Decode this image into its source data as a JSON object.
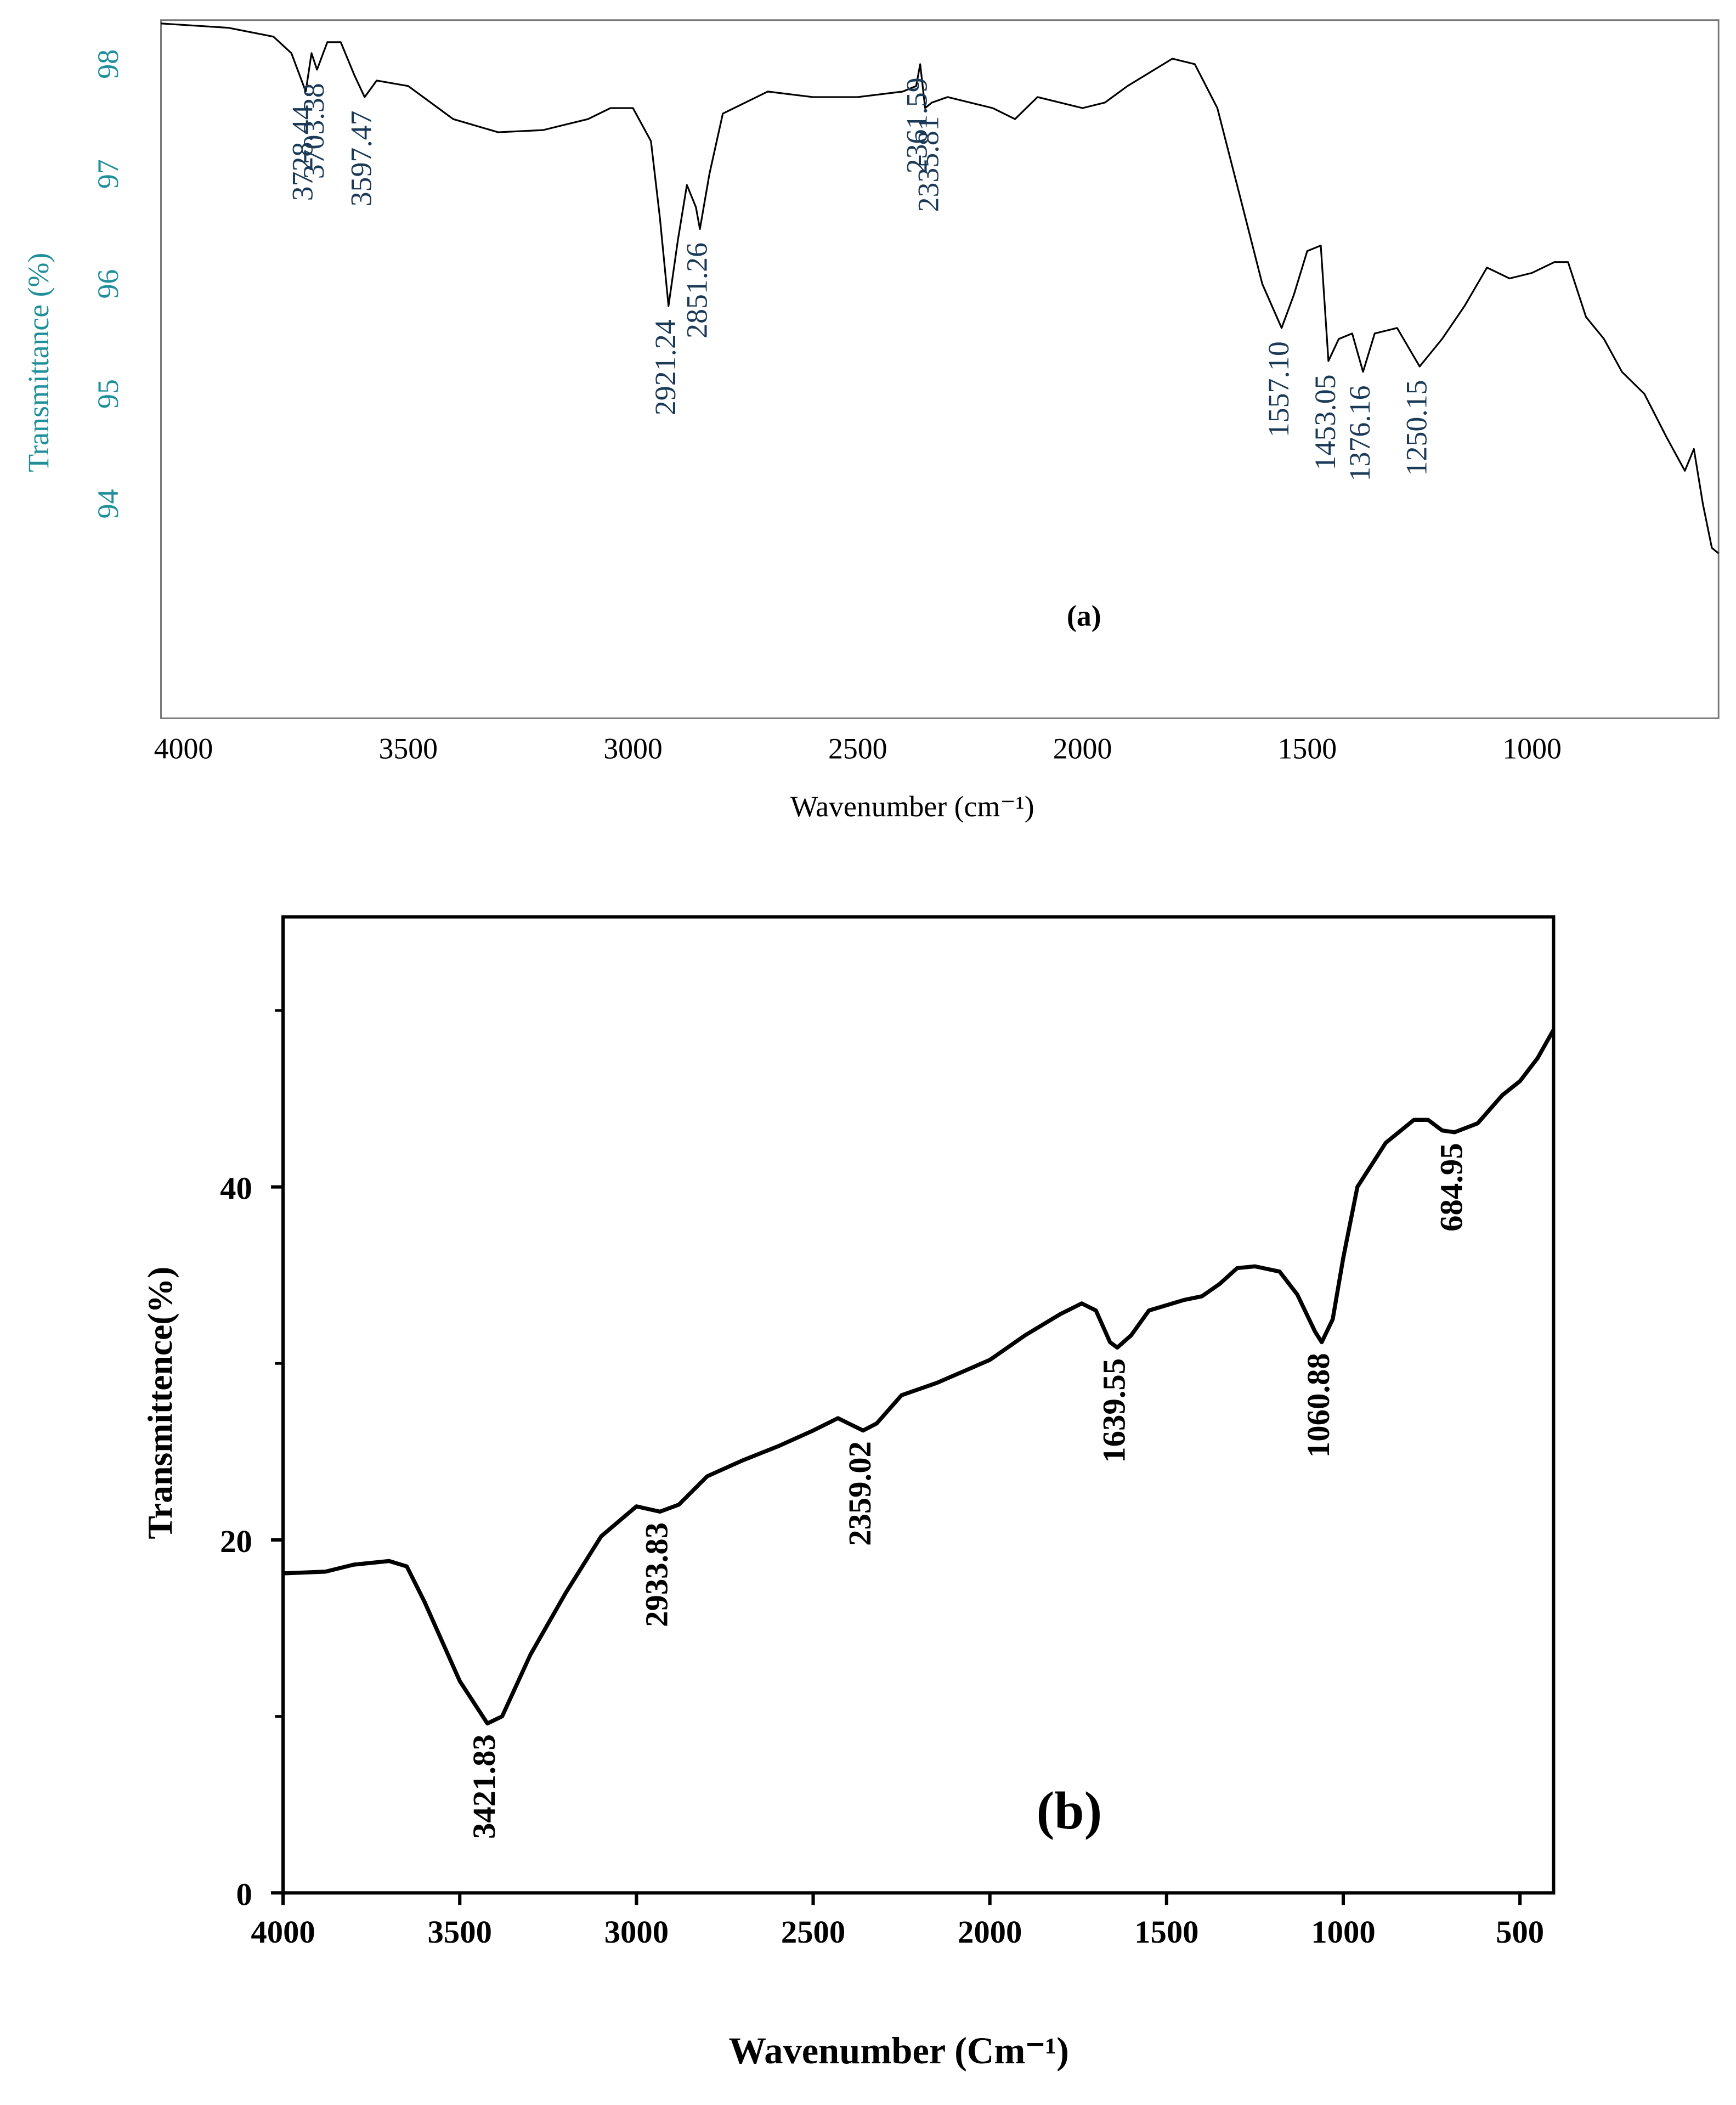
{
  "chart_data": [
    {
      "type": "line",
      "panel_label": "(a)",
      "xlabel": "Wavenumber (cm⁻¹)",
      "ylabel": "Transmittance (%)",
      "color": "#000000",
      "tick_color": "#1f8f9a",
      "annotation_color": "#1b3a57",
      "xlim": [
        4050,
        585
      ],
      "ylim": [
        92.05,
        98.4
      ],
      "xticks": [
        4000,
        3500,
        3000,
        2500,
        2000,
        1500,
        1000
      ],
      "yticks": [
        94,
        95,
        96,
        97,
        98
      ],
      "x": [
        4050,
        3900,
        3800,
        3760,
        3728,
        3715,
        3703,
        3680,
        3650,
        3620,
        3597,
        3570,
        3500,
        3400,
        3300,
        3200,
        3100,
        3050,
        3000,
        2960,
        2940,
        2921,
        2900,
        2880,
        2860,
        2851,
        2830,
        2800,
        2700,
        2600,
        2500,
        2400,
        2370,
        2361,
        2350,
        2335,
        2300,
        2200,
        2150,
        2100,
        2000,
        1950,
        1900,
        1800,
        1750,
        1700,
        1650,
        1600,
        1557,
        1530,
        1500,
        1470,
        1453,
        1430,
        1400,
        1376,
        1350,
        1300,
        1250,
        1200,
        1150,
        1100,
        1050,
        1000,
        950,
        920,
        880,
        840,
        800,
        750,
        700,
        660,
        640,
        620,
        600,
        585
      ],
      "values": [
        98.37,
        98.33,
        98.25,
        98.1,
        97.75,
        98.1,
        97.95,
        98.2,
        98.2,
        97.9,
        97.7,
        97.85,
        97.8,
        97.5,
        97.38,
        97.4,
        97.5,
        97.6,
        97.6,
        97.3,
        96.6,
        95.8,
        96.4,
        96.9,
        96.7,
        96.5,
        97.0,
        97.55,
        97.75,
        97.7,
        97.7,
        97.75,
        97.8,
        98.0,
        97.6,
        97.65,
        97.7,
        97.6,
        97.5,
        97.7,
        97.6,
        97.65,
        97.8,
        98.05,
        98.0,
        97.6,
        96.8,
        96.0,
        95.6,
        95.9,
        96.3,
        96.35,
        95.3,
        95.5,
        95.55,
        95.2,
        95.55,
        95.6,
        95.25,
        95.5,
        95.8,
        96.15,
        96.05,
        96.1,
        96.2,
        96.2,
        95.7,
        95.5,
        95.2,
        95.0,
        94.6,
        94.3,
        94.5,
        94.0,
        93.6,
        93.55
      ],
      "annotations": [
        {
          "label": "3728.44",
          "x": 3728.44,
          "y": 97.75
        },
        {
          "label": "3703.38",
          "x": 3703.38,
          "y": 97.95
        },
        {
          "label": "3597.47",
          "x": 3597.47,
          "y": 97.7
        },
        {
          "label": "2921.24",
          "x": 2921.24,
          "y": 95.8
        },
        {
          "label": "2851.26",
          "x": 2851.26,
          "y": 96.5
        },
        {
          "label": "2361.59",
          "x": 2361.59,
          "y": 98.0
        },
        {
          "label": "2335.81",
          "x": 2335.81,
          "y": 97.65
        },
        {
          "label": "1557.10",
          "x": 1557.1,
          "y": 95.6
        },
        {
          "label": "1453.05",
          "x": 1453.05,
          "y": 95.3
        },
        {
          "label": "1376.16",
          "x": 1376.16,
          "y": 95.2
        },
        {
          "label": "1250.15",
          "x": 1250.15,
          "y": 95.25
        }
      ]
    },
    {
      "type": "line",
      "panel_label": "(b)",
      "xlabel": "Wavenumber (Cm⁻¹)",
      "ylabel": "Transmittence(%)",
      "color": "#000000",
      "tick_color": "#000000",
      "annotation_color": "#000000",
      "xlim": [
        4000,
        405
      ],
      "ylim": [
        0,
        55.3
      ],
      "xticks": [
        4000,
        3500,
        3000,
        2500,
        2000,
        1500,
        1000,
        500
      ],
      "yticks": [
        0,
        20,
        40
      ],
      "yminor": [
        10,
        30,
        50
      ],
      "x": [
        4000,
        3880,
        3800,
        3700,
        3650,
        3600,
        3500,
        3421.83,
        3380,
        3300,
        3200,
        3100,
        3000,
        2933.83,
        2880,
        2800,
        2700,
        2600,
        2500,
        2430,
        2400,
        2359.02,
        2320,
        2250,
        2150,
        2000,
        1900,
        1800,
        1740,
        1700,
        1660,
        1639.55,
        1600,
        1550,
        1450,
        1400,
        1350,
        1300,
        1250,
        1180,
        1130,
        1080,
        1060.88,
        1030,
        1000,
        960,
        880,
        800,
        760,
        720,
        684.95,
        620,
        550,
        500,
        450,
        405
      ],
      "values": [
        18.1,
        18.2,
        18.6,
        18.8,
        18.5,
        16.5,
        12,
        9.6,
        10,
        13.5,
        17,
        20.2,
        21.9,
        21.6,
        22,
        23.6,
        24.5,
        25.3,
        26.2,
        26.9,
        26.6,
        26.2,
        26.6,
        28.2,
        28.9,
        30.2,
        31.6,
        32.8,
        33.4,
        33.0,
        31.2,
        30.9,
        31.6,
        33.0,
        33.6,
        33.8,
        34.5,
        35.4,
        35.5,
        35.2,
        33.9,
        31.8,
        31.2,
        32.5,
        36,
        40,
        42.5,
        43.8,
        43.8,
        43.2,
        43.1,
        43.6,
        45.2,
        46,
        47.3,
        48.9
      ],
      "annotations": [
        {
          "label": "3421.83",
          "x": 3421.83,
          "y": 9.6
        },
        {
          "label": "2933.83",
          "x": 2933.83,
          "y": 21.6
        },
        {
          "label": "2359.02",
          "x": 2359.02,
          "y": 26.2
        },
        {
          "label": "1639.55",
          "x": 1639.55,
          "y": 30.9
        },
        {
          "label": "1060.88",
          "x": 1060.88,
          "y": 31.2
        },
        {
          "label": "684.95",
          "x": 684.95,
          "y": 43.1
        }
      ]
    }
  ]
}
